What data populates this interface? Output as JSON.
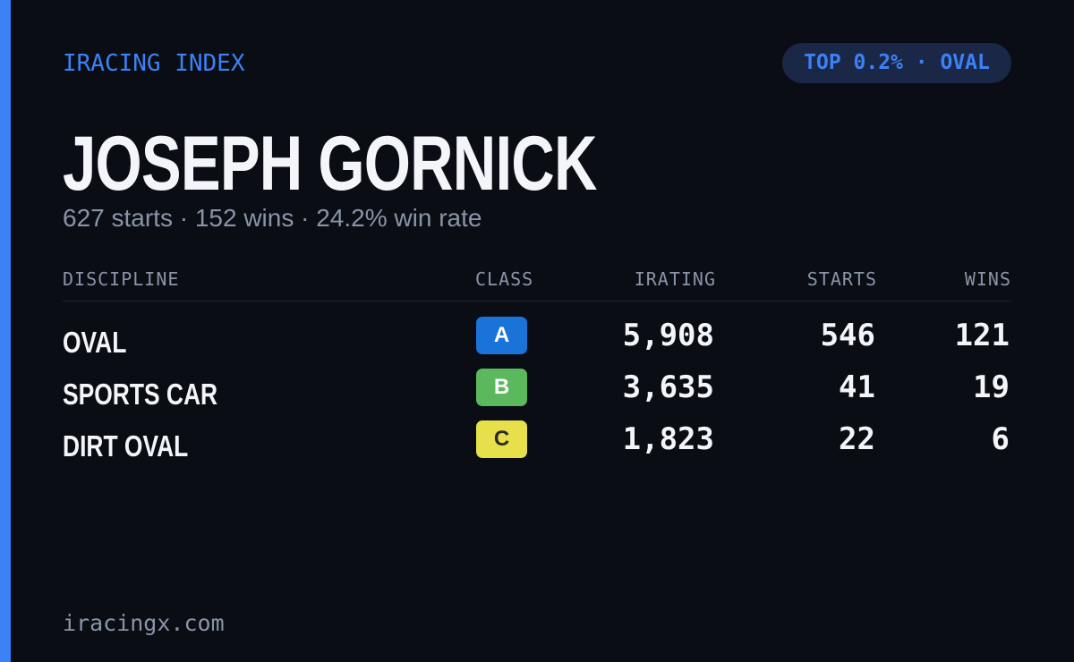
{
  "header": {
    "label": "IRACING INDEX",
    "badge": "TOP 0.2% · OVAL"
  },
  "name": "JOSEPH GORNICK",
  "summary": "627 starts · 152 wins · 24.2% win rate",
  "table": {
    "columns": [
      "DISCIPLINE",
      "CLASS",
      "IRATING",
      "STARTS",
      "WINS"
    ],
    "rows": [
      [
        "OVAL",
        "A",
        "5,908",
        "546",
        "121"
      ],
      [
        "SPORTS CAR",
        "B",
        "3,635",
        "41",
        "19"
      ],
      [
        "DIRT OVAL",
        "C",
        "1,823",
        "22",
        "6"
      ]
    ]
  },
  "footer": "iracingx.com"
}
